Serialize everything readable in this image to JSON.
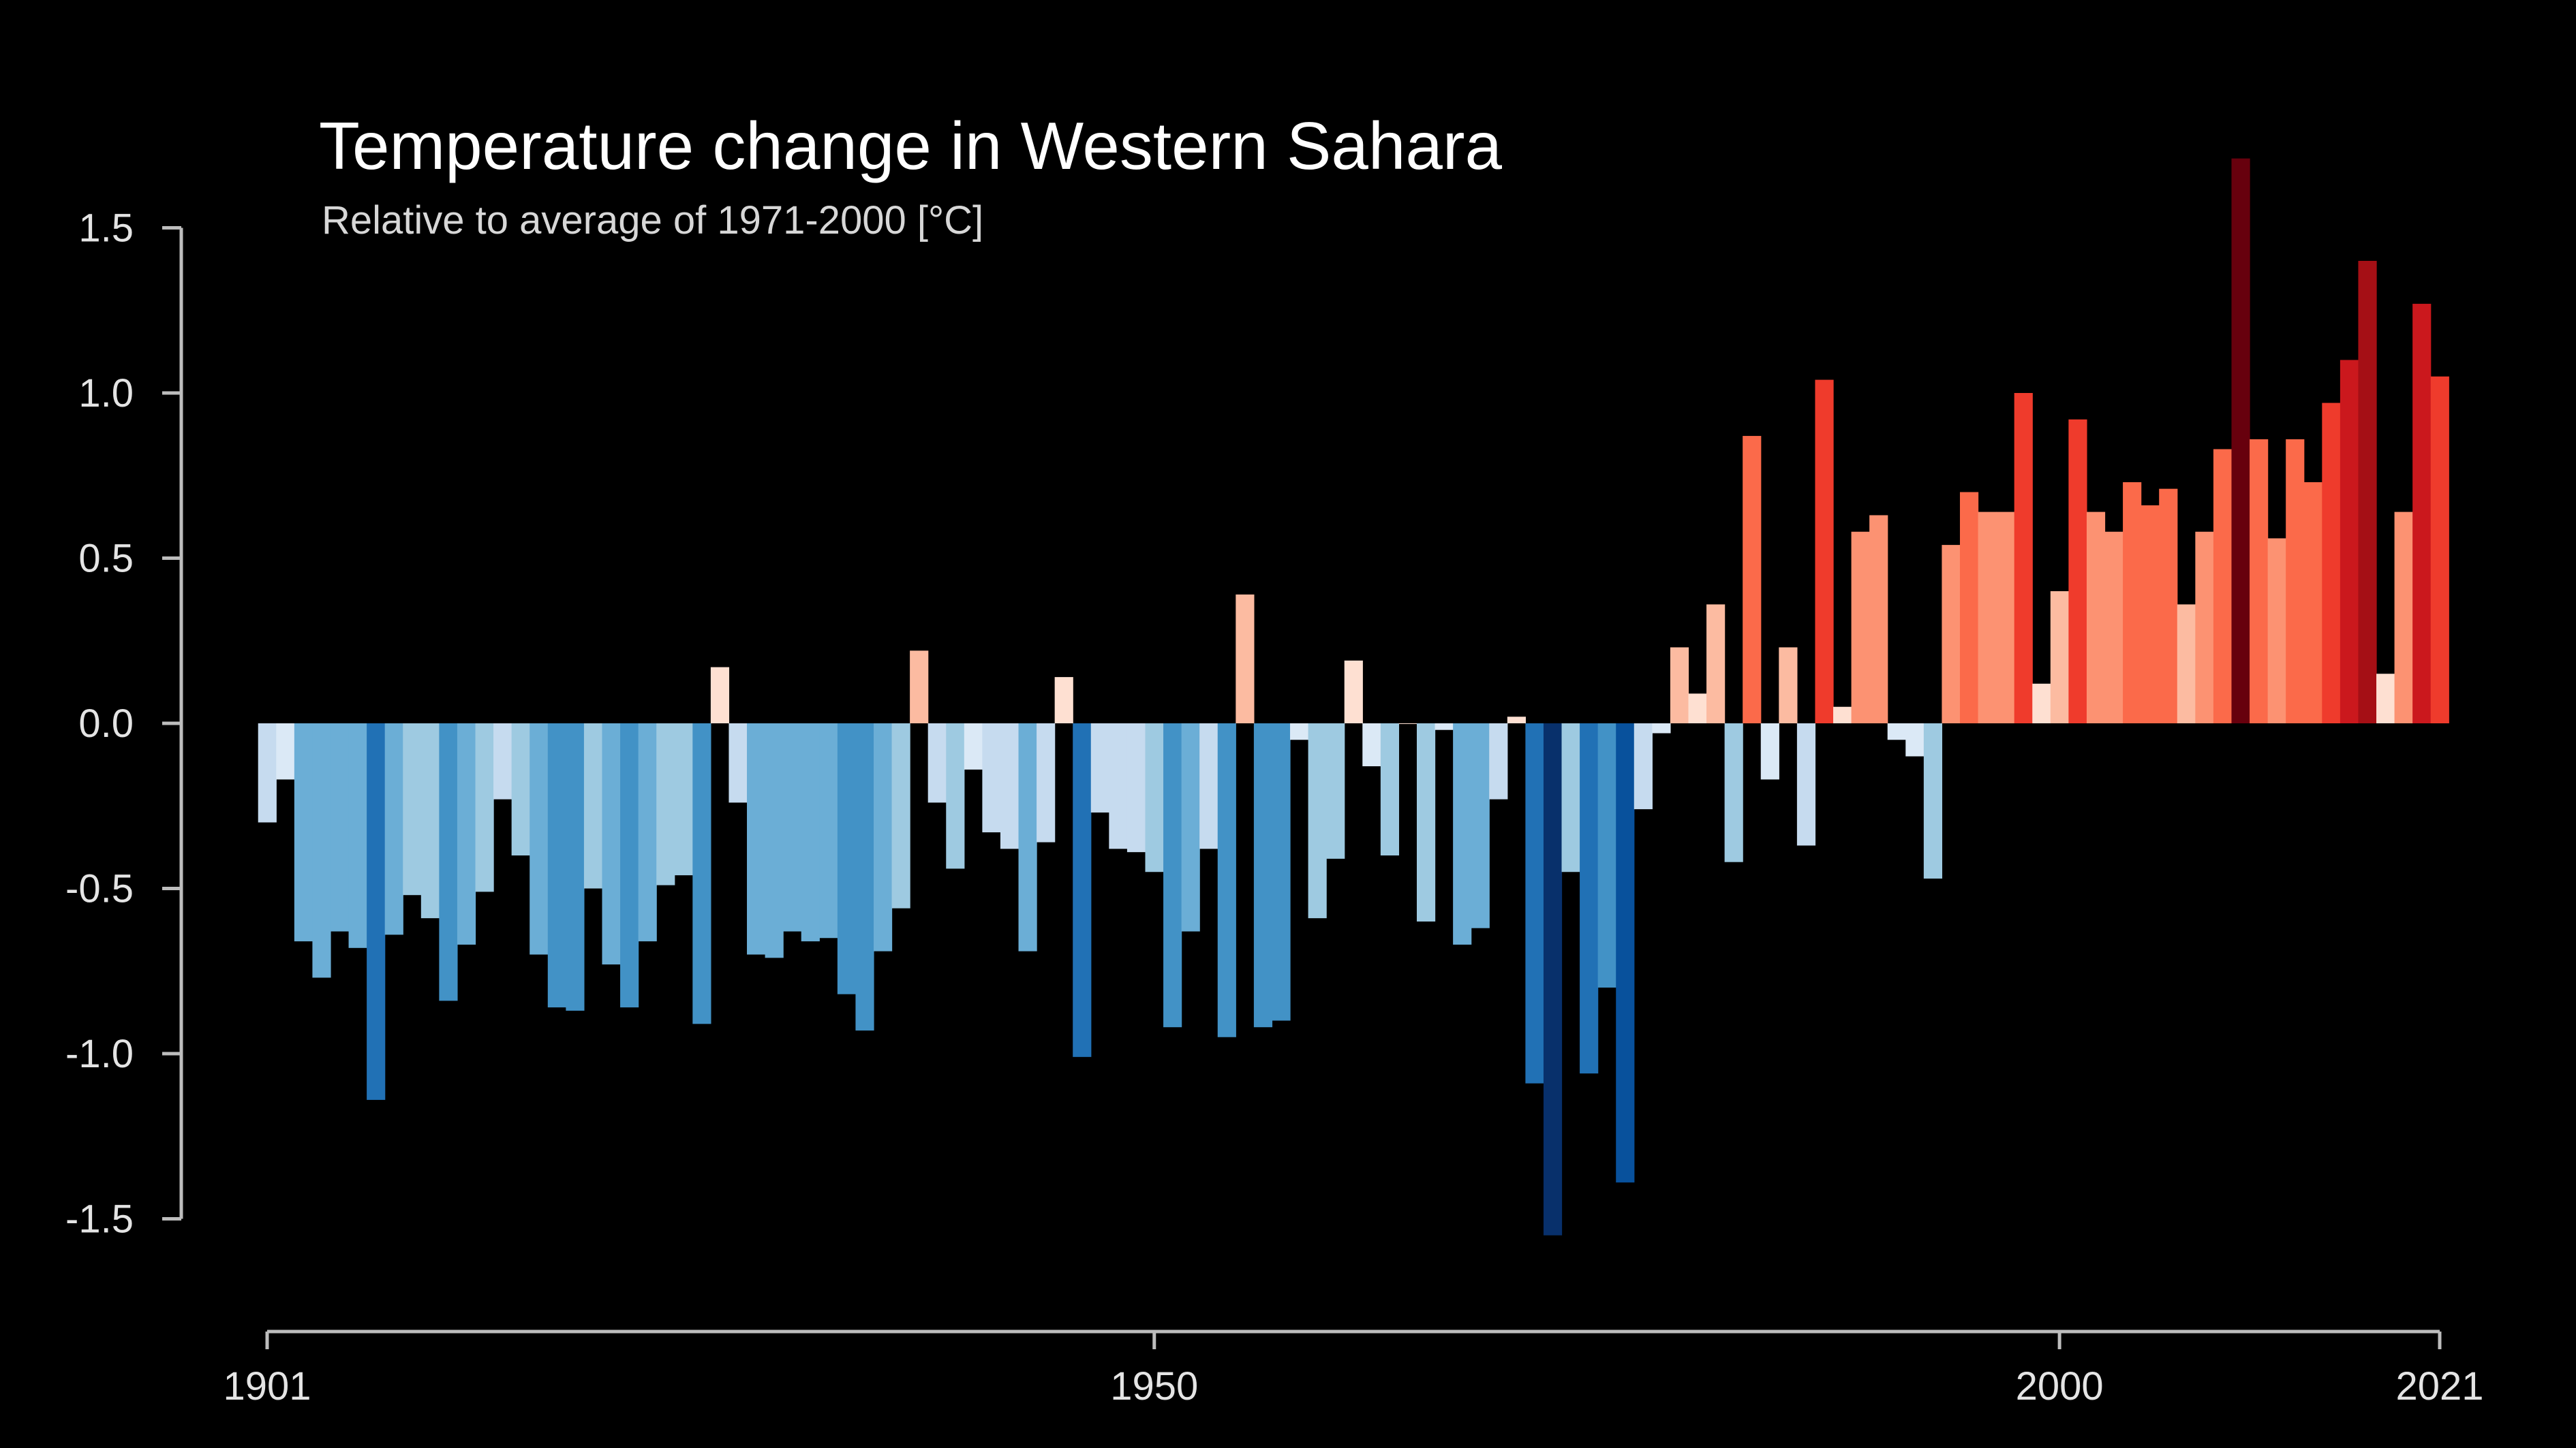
{
  "chart_data": {
    "type": "bar",
    "title": "Temperature change in Western Sahara",
    "subtitle": "Relative to average of 1971-2000  [°C]",
    "xlabel": "",
    "ylabel": "",
    "x_start": 1901,
    "x_end": 2021,
    "ylim": [
      -1.5,
      1.5
    ],
    "grid": false,
    "y_ticks": [
      {
        "value": 1.5,
        "label": "1.5"
      },
      {
        "value": 1.0,
        "label": "1.0"
      },
      {
        "value": 0.5,
        "label": "0.5"
      },
      {
        "value": 0.0,
        "label": "0.0"
      },
      {
        "value": -0.5,
        "label": "-0.5"
      },
      {
        "value": -1.0,
        "label": "-1.0"
      },
      {
        "value": -1.5,
        "label": "-1.5"
      }
    ],
    "x_ticks": [
      {
        "value": 1901,
        "label": "1901"
      },
      {
        "value": 1950,
        "label": "1950"
      },
      {
        "value": 2000,
        "label": "2000"
      },
      {
        "value": 2021,
        "label": "2021"
      }
    ],
    "years": [
      1901,
      1902,
      1903,
      1904,
      1905,
      1906,
      1907,
      1908,
      1909,
      1910,
      1911,
      1912,
      1913,
      1914,
      1915,
      1916,
      1917,
      1918,
      1919,
      1920,
      1921,
      1922,
      1923,
      1924,
      1925,
      1926,
      1927,
      1928,
      1929,
      1930,
      1931,
      1932,
      1933,
      1934,
      1935,
      1936,
      1937,
      1938,
      1939,
      1940,
      1941,
      1942,
      1943,
      1944,
      1945,
      1946,
      1947,
      1948,
      1949,
      1950,
      1951,
      1952,
      1953,
      1954,
      1955,
      1956,
      1957,
      1958,
      1959,
      1960,
      1961,
      1962,
      1963,
      1964,
      1965,
      1966,
      1967,
      1968,
      1969,
      1970,
      1971,
      1972,
      1973,
      1974,
      1975,
      1976,
      1977,
      1978,
      1979,
      1980,
      1981,
      1982,
      1983,
      1984,
      1985,
      1986,
      1987,
      1988,
      1989,
      1990,
      1991,
      1992,
      1993,
      1994,
      1995,
      1996,
      1997,
      1998,
      1999,
      2000,
      2001,
      2002,
      2003,
      2004,
      2005,
      2006,
      2007,
      2008,
      2009,
      2010,
      2011,
      2012,
      2013,
      2014,
      2015,
      2016,
      2017,
      2018,
      2019,
      2020,
      2021
    ],
    "values": [
      -0.3,
      -0.17,
      -0.66,
      -0.77,
      -0.63,
      -0.68,
      -1.14,
      -0.64,
      -0.52,
      -0.59,
      -0.84,
      -0.67,
      -0.51,
      -0.23,
      -0.4,
      -0.7,
      -0.86,
      -0.87,
      -0.5,
      -0.73,
      -0.86,
      -0.66,
      -0.49,
      -0.46,
      -0.91,
      0.17,
      -0.24,
      -0.7,
      -0.71,
      -0.63,
      -0.66,
      -0.65,
      -0.82,
      -0.93,
      -0.69,
      -0.56,
      0.22,
      -0.24,
      -0.44,
      -0.14,
      -0.33,
      -0.38,
      -0.69,
      -0.36,
      0.14,
      -1.01,
      -0.27,
      -0.38,
      -0.39,
      -0.45,
      -0.92,
      -0.63,
      -0.38,
      -0.95,
      0.39,
      -0.92,
      -0.9,
      -0.05,
      -0.59,
      -0.41,
      0.19,
      -0.13,
      -0.4,
      0.0,
      -0.6,
      -0.02,
      -0.67,
      -0.62,
      -0.23,
      0.02,
      -1.09,
      -1.55,
      -0.45,
      -1.06,
      -0.8,
      -1.39,
      -0.26,
      -0.03,
      0.23,
      0.09,
      0.36,
      -0.42,
      0.87,
      -0.17,
      0.23,
      -0.37,
      1.04,
      0.05,
      0.58,
      0.63,
      -0.05,
      -0.1,
      -0.47,
      0.54,
      0.7,
      0.64,
      0.64,
      1.0,
      0.12,
      0.4,
      0.92,
      0.64,
      0.58,
      0.73,
      0.66,
      0.71,
      0.36,
      0.58,
      0.83,
      1.71,
      0.86,
      0.56,
      0.86,
      0.73,
      0.97,
      1.1,
      1.4,
      0.15,
      0.64,
      1.27,
      1.05
    ]
  }
}
